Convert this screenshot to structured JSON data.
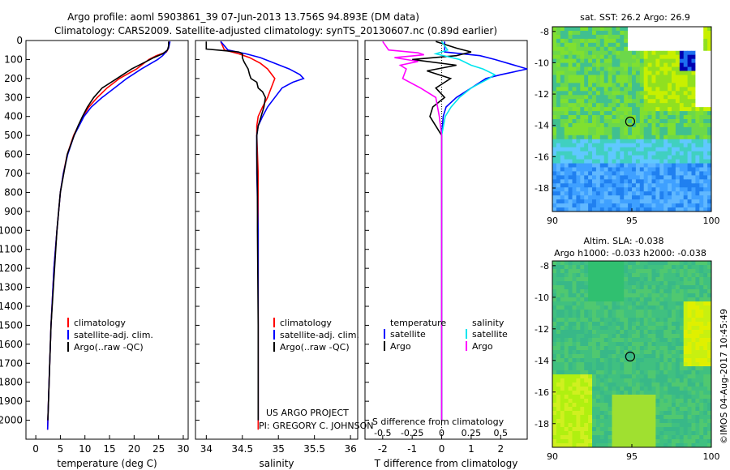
{
  "title_line1": "Argo profile: aoml 5903861_39 07-Jun-2013 13.756S 94.893E (DM data)",
  "title_line2": "Climatology: CARS2009. Satellite-adjusted climatology: synTS_20130607.nc (0.89d earlier)",
  "credit": "US ARGO PROJECT",
  "pi": "PI: GREGORY C. JOHNSON",
  "stamp": "©IMOS 04-Aug-2017 10:45:49",
  "colors": {
    "climatology": "#ff0000",
    "satellite": "#0000ff",
    "argo": "#000000",
    "sal_satellite": "#00e5ee",
    "sal_argo": "#ff00ff"
  },
  "chart_data": [
    {
      "type": "line",
      "id": "temperature",
      "xlabel": "temperature (deg C)",
      "ylabel": "",
      "xlim": [
        -2,
        31
      ],
      "ylim": [
        2100,
        0
      ],
      "xticks": [
        "0",
        "5",
        "10",
        "15",
        "20",
        "25",
        "30"
      ],
      "xtick_values": [
        0,
        5,
        10,
        15,
        20,
        25,
        30
      ],
      "yticks": [
        "0",
        "100",
        "200",
        "300",
        "400",
        "500",
        "600",
        "700",
        "800",
        "900",
        "1000",
        "1100",
        "1200",
        "1300",
        "1400",
        "1500",
        "1600",
        "1700",
        "1800",
        "1900",
        "2000"
      ],
      "ytick_values": [
        0,
        100,
        200,
        300,
        400,
        500,
        600,
        700,
        800,
        900,
        1000,
        1100,
        1200,
        1300,
        1400,
        1500,
        1600,
        1700,
        1800,
        1900,
        2000
      ],
      "legend": [
        "climatology",
        "satellite-adj. clim.",
        "Argo(..raw -QC)"
      ],
      "series": [
        {
          "name": "climatology",
          "color_key": "climatology",
          "depth": [
            5,
            40,
            60,
            80,
            100,
            150,
            200,
            250,
            300,
            350,
            400,
            500,
            600,
            700,
            800,
            1000,
            1200,
            1500,
            1800,
            2000,
            2050
          ],
          "values": [
            27.2,
            27.0,
            26.6,
            24.5,
            23.0,
            20.5,
            17.0,
            14.5,
            12.5,
            10.8,
            9.6,
            7.7,
            6.4,
            5.6,
            5.0,
            4.3,
            3.7,
            3.1,
            2.7,
            2.45,
            2.4
          ]
        },
        {
          "name": "satellite-adj. clim.",
          "color_key": "satellite",
          "depth": [
            5,
            40,
            60,
            80,
            100,
            150,
            200,
            250,
            300,
            350,
            400,
            500,
            600,
            700,
            800,
            1000,
            1200,
            1500,
            1800,
            2000,
            2050
          ],
          "values": [
            27.3,
            27.0,
            26.5,
            25.8,
            24.8,
            21.5,
            18.5,
            16.0,
            13.5,
            11.3,
            9.8,
            7.8,
            6.5,
            5.6,
            5.0,
            4.3,
            3.7,
            3.1,
            2.7,
            2.45,
            2.4
          ]
        },
        {
          "name": "Argo",
          "color_key": "argo",
          "depth": [
            5,
            30,
            50,
            70,
            90,
            110,
            150,
            200,
            250,
            300,
            350,
            400,
            450,
            500,
            600,
            800,
            1000,
            1500,
            2000
          ],
          "values": [
            27.0,
            27.0,
            26.8,
            25.8,
            24.0,
            22.5,
            19.5,
            16.5,
            13.5,
            11.8,
            10.5,
            9.5,
            8.6,
            7.8,
            6.4,
            5.0,
            4.3,
            3.1,
            2.45
          ]
        }
      ]
    },
    {
      "type": "line",
      "id": "salinity",
      "xlabel": "salinity",
      "xlim": [
        33.85,
        36.1
      ],
      "ylim": [
        2100,
        0
      ],
      "xticks": [
        "34",
        "34.5",
        "35",
        "35.5",
        "36"
      ],
      "xtick_values": [
        34,
        34.5,
        35,
        35.5,
        36
      ],
      "legend": [
        "climatology",
        "satellite-adj. clim.",
        "Argo(..raw -QC)"
      ],
      "series": [
        {
          "name": "climatology",
          "color_key": "climatology",
          "depth": [
            5,
            50,
            70,
            90,
            120,
            150,
            200,
            250,
            300,
            350,
            400,
            450,
            500,
            700,
            1000,
            1500,
            2000,
            2050
          ],
          "values": [
            34.2,
            34.25,
            34.45,
            34.6,
            34.75,
            34.85,
            34.95,
            34.9,
            34.85,
            34.78,
            34.72,
            34.7,
            34.7,
            34.72,
            34.72,
            34.72,
            34.72,
            34.72
          ]
        },
        {
          "name": "satellite-adj. clim.",
          "color_key": "satellite",
          "depth": [
            5,
            50,
            70,
            90,
            120,
            150,
            180,
            200,
            220,
            250,
            300,
            350,
            400,
            450,
            500,
            700,
            1000,
            1500,
            2000
          ],
          "values": [
            34.2,
            34.3,
            34.55,
            34.75,
            34.95,
            35.15,
            35.3,
            35.35,
            35.2,
            35.05,
            34.95,
            34.85,
            34.78,
            34.72,
            34.7,
            34.7,
            34.72,
            34.72,
            34.72
          ]
        },
        {
          "name": "Argo",
          "color_key": "argo",
          "depth": [
            5,
            45,
            55,
            60,
            70,
            90,
            110,
            130,
            150,
            180,
            200,
            220,
            250,
            270,
            300,
            350,
            400,
            450,
            500,
            600,
            800,
            1000,
            1500,
            2000
          ],
          "values": [
            34.0,
            34.0,
            34.3,
            34.45,
            34.5,
            34.5,
            34.52,
            34.55,
            34.58,
            34.6,
            34.62,
            34.7,
            34.72,
            34.78,
            34.82,
            34.8,
            34.76,
            34.72,
            34.7,
            34.7,
            34.71,
            34.71,
            34.72,
            34.72
          ]
        }
      ]
    },
    {
      "type": "line",
      "id": "differences",
      "xlabel": "T difference from climatology",
      "xlabel_top": "S difference from climatology",
      "t_xlim": [
        -2.6,
        2.9
      ],
      "s_xlim": [
        -0.65,
        0.725
      ],
      "ylim": [
        2100,
        0
      ],
      "t_xticks": [
        "-2",
        "-1",
        "0",
        "1",
        "2"
      ],
      "t_xtick_values": [
        -2,
        -1,
        0,
        1,
        2
      ],
      "s_xticks": [
        "-0.5",
        "-0.25",
        "0",
        "0.25",
        "0.5"
      ],
      "s_xtick_values": [
        -0.5,
        -0.25,
        0,
        0.25,
        0.5
      ],
      "legend_headers": [
        "temperature",
        "salinity"
      ],
      "legend": [
        "satellite",
        "Argo",
        "satellite",
        "Argo"
      ],
      "series": [
        {
          "name": "T satellite",
          "color_key": "satellite",
          "depth": [
            5,
            60,
            80,
            100,
            150,
            180,
            200,
            230,
            260,
            300,
            350,
            400,
            500,
            800,
            1200,
            2000
          ],
          "values": [
            0.1,
            0.1,
            1.3,
            1.8,
            2.9,
            2.0,
            1.5,
            1.2,
            0.9,
            0.5,
            0.15,
            0.05,
            0.0,
            0.0,
            0.0,
            0.0
          ]
        },
        {
          "name": "T Argo",
          "color_key": "argo",
          "depth": [
            5,
            40,
            60,
            80,
            100,
            130,
            160,
            200,
            250,
            300,
            350,
            400,
            450,
            500,
            600,
            800,
            1200,
            2000
          ],
          "values": [
            -0.2,
            0.5,
            1.0,
            0.5,
            -1.0,
            0.5,
            -0.5,
            0.3,
            -0.2,
            0.1,
            -0.3,
            -0.4,
            -0.2,
            0.0,
            0.0,
            0.0,
            0.0,
            0.0
          ]
        },
        {
          "name": "S satellite",
          "color_key": "sal_satellite",
          "depth": [
            5,
            50,
            70,
            100,
            130,
            150,
            180,
            200,
            250,
            300,
            350,
            400,
            500,
            800,
            2000
          ],
          "values": [
            0.0,
            0.05,
            -0.05,
            0.15,
            0.25,
            0.35,
            0.45,
            0.4,
            0.25,
            0.15,
            0.08,
            0.03,
            0.0,
            0.0,
            0.0
          ]
        },
        {
          "name": "S Argo",
          "color_key": "sal_argo",
          "depth": [
            5,
            50,
            65,
            75,
            90,
            110,
            130,
            150,
            200,
            250,
            300,
            400,
            500,
            800,
            2000
          ],
          "values": [
            -0.5,
            -0.45,
            -0.2,
            -0.15,
            -0.4,
            -0.2,
            -0.35,
            -0.3,
            -0.33,
            -0.18,
            -0.05,
            -0.02,
            0.0,
            0.0,
            0.0
          ]
        }
      ]
    },
    {
      "type": "heatmap",
      "id": "sst_map",
      "title": "sat. SST: 26.2 Argo: 26.9",
      "xlim": [
        90,
        100
      ],
      "ylim": [
        -19.5,
        -7.7
      ],
      "xticks": [
        "90",
        "95",
        "100"
      ],
      "xtick_values": [
        90,
        95,
        100
      ],
      "yticks": [
        "-8",
        "-10",
        "-12",
        "-14",
        "-16",
        "-18"
      ],
      "ytick_values": [
        -8,
        -10,
        -12,
        -14,
        -16,
        -18
      ],
      "marker": [
        94.893,
        -13.756
      ]
    },
    {
      "type": "heatmap",
      "id": "sla_map",
      "title": "Altim. SLA: -0.038",
      "subtitle": "Argo h1000: -0.033 h2000: -0.038",
      "xlim": [
        90,
        100
      ],
      "ylim": [
        -19.5,
        -7.7
      ],
      "xticks": [
        "90",
        "95",
        "100"
      ],
      "xtick_values": [
        90,
        95,
        100
      ],
      "yticks": [
        "-8",
        "-10",
        "-12",
        "-14",
        "-16",
        "-18"
      ],
      "ytick_values": [
        -8,
        -10,
        -12,
        -14,
        -16,
        -18
      ],
      "marker": [
        94.893,
        -13.756
      ]
    }
  ]
}
